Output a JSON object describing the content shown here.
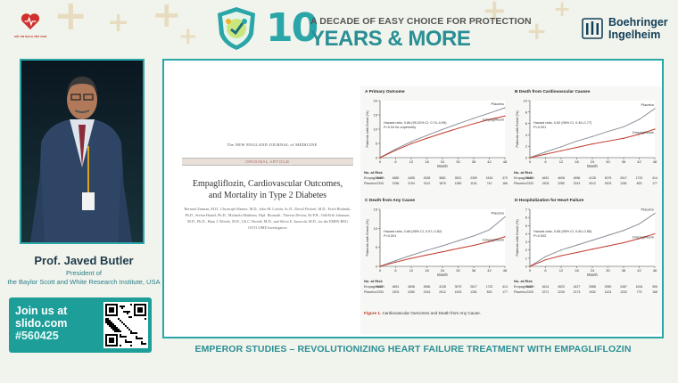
{
  "header": {
    "left_logo_text": "HỘI TIM MẠCH VIỆT NAM",
    "tagline": "A DECADE OF EASY CHOICE FOR PROTECTION",
    "big_number": "10",
    "years_text": "YEARS & MORE",
    "sponsor_line1": "Boehringer",
    "sponsor_line2": "Ingelheim",
    "accent_color": "#2aa5a8"
  },
  "speaker": {
    "name": "Prof. Javed Butler",
    "role_line1": "President of",
    "role_line2": "the Baylor Scott and White Research Institute, USA"
  },
  "slido": {
    "line1": "Join us at",
    "line2": "slido.com",
    "code": "#560425"
  },
  "paper": {
    "journal": "The NEW ENGLAND JOURNAL of MEDICINE",
    "section": "ORIGINAL ARTICLE",
    "title_line1": "Empagliflozin, Cardiovascular Outcomes,",
    "title_line2": "and Mortality in Type 2 Diabetes",
    "authors": "Bernard Zinman, M.D., Christoph Wanner, M.D., John M. Lachin, Sc.D., David Fitchett, M.D., Erich Bluhmki, Ph.D., Stefan Hantel, Ph.D., Michaela Mattheus, Dipl. Biomath., Theresa Devins, Dr.P.H., Odd Erik Johansen, M.D., Ph.D., Hans J. Woerle, M.D., Uli C. Broedl, M.D., and Silvio E. Inzucchi, M.D., for the EMPA-REG OUTCOME Investigators"
  },
  "figure_caption": {
    "label": "Figure 1.",
    "text": "Cardiovascular Outcomes and Death from Any Cause."
  },
  "chart_data": [
    {
      "type": "line",
      "title": "A  Primary Outcome",
      "xlabel": "Month",
      "ylabel": "Patients with Event (%)",
      "xlim": [
        0,
        48
      ],
      "ylim": [
        0,
        20
      ],
      "x_ticks": [
        0,
        6,
        12,
        18,
        24,
        30,
        36,
        42,
        48
      ],
      "y_ticks": [
        0,
        5,
        10,
        15,
        20
      ],
      "hazard_text": "Hazard ratio, 0.86 (95.02% CI, 0.74–0.99)",
      "p_text": "P=0.04 for superiority",
      "risk_label": "No. at Risk",
      "series": [
        {
          "name": "Placebo",
          "color": "#8a8f9a",
          "x": [
            0,
            6,
            12,
            18,
            24,
            30,
            36,
            42,
            48
          ],
          "values": [
            0,
            3.0,
            5.6,
            7.8,
            9.9,
            11.9,
            13.8,
            15.6,
            17.5
          ]
        },
        {
          "name": "Empagliflozin",
          "color": "#c0392b",
          "x": [
            0,
            6,
            12,
            18,
            24,
            30,
            36,
            42,
            48
          ],
          "values": [
            0,
            2.6,
            4.9,
            6.8,
            8.6,
            10.3,
            11.9,
            13.4,
            14.6
          ]
        }
      ],
      "risk_rows": [
        {
          "name": "Empagliflozin",
          "values": [
            "4687",
            "4580",
            "4455",
            "4328",
            "3851",
            "2821",
            "2359",
            "1534",
            "370"
          ]
        },
        {
          "name": "Placebo",
          "values": [
            "2333",
            "2256",
            "2194",
            "2112",
            "1875",
            "1380",
            "1161",
            "741",
            "166"
          ]
        }
      ]
    },
    {
      "type": "line",
      "title": "B  Death from Cardiovascular Causes",
      "xlabel": "Month",
      "ylabel": "Patients with Event (%)",
      "xlim": [
        0,
        48
      ],
      "ylim": [
        0,
        10
      ],
      "x_ticks": [
        0,
        6,
        12,
        18,
        24,
        30,
        36,
        42,
        48
      ],
      "y_ticks": [
        0,
        2,
        4,
        6,
        8,
        10
      ],
      "hazard_text": "Hazard ratio, 0.62 (95% CI, 0.49–0.77)",
      "p_text": "P<0.001",
      "risk_label": "No. at Risk",
      "series": [
        {
          "name": "Placebo",
          "color": "#8a8f9a",
          "x": [
            0,
            6,
            12,
            18,
            24,
            30,
            36,
            42,
            48
          ],
          "values": [
            0,
            1.0,
            1.9,
            2.9,
            3.7,
            4.6,
            5.4,
            6.7,
            8.6
          ]
        },
        {
          "name": "Empagliflozin",
          "color": "#c0392b",
          "x": [
            0,
            6,
            12,
            18,
            24,
            30,
            36,
            42,
            48
          ],
          "values": [
            0,
            0.6,
            1.2,
            1.8,
            2.4,
            2.9,
            3.4,
            4.1,
            5.0
          ]
        }
      ],
      "risk_rows": [
        {
          "name": "Empagliflozin",
          "values": [
            "4687",
            "4651",
            "4608",
            "4556",
            "4128",
            "3079",
            "2617",
            "1722",
            "414"
          ]
        },
        {
          "name": "Placebo",
          "values": [
            "2333",
            "2303",
            "2280",
            "2243",
            "2012",
            "1503",
            "1281",
            "825",
            "177"
          ]
        }
      ]
    },
    {
      "type": "line",
      "title": "C  Death from Any Cause",
      "xlabel": "Month",
      "ylabel": "Patients with Event (%)",
      "xlim": [
        0,
        48
      ],
      "ylim": [
        0,
        15
      ],
      "x_ticks": [
        0,
        6,
        12,
        18,
        24,
        30,
        36,
        42,
        48
      ],
      "y_ticks": [
        0,
        5,
        10,
        15
      ],
      "hazard_text": "Hazard ratio, 0.68 (95% CI, 0.57–0.82)",
      "p_text": "P<0.001",
      "risk_label": "No. at Risk",
      "series": [
        {
          "name": "Placebo",
          "color": "#8a8f9a",
          "x": [
            0,
            6,
            12,
            18,
            24,
            30,
            36,
            42,
            48
          ],
          "values": [
            0,
            1.5,
            2.9,
            4.2,
            5.4,
            6.7,
            8.0,
            9.6,
            13.0
          ]
        },
        {
          "name": "Empagliflozin",
          "color": "#c0392b",
          "x": [
            0,
            6,
            12,
            18,
            24,
            30,
            36,
            42,
            48
          ],
          "values": [
            0,
            1.1,
            2.1,
            3.0,
            3.8,
            4.7,
            5.5,
            6.5,
            7.8
          ]
        }
      ],
      "risk_rows": [
        {
          "name": "Empagliflozin",
          "values": [
            "4687",
            "4651",
            "4608",
            "4556",
            "4128",
            "3079",
            "2617",
            "1722",
            "414"
          ]
        },
        {
          "name": "Placebo",
          "values": [
            "2333",
            "2303",
            "2280",
            "2243",
            "2012",
            "1503",
            "1281",
            "825",
            "177"
          ]
        }
      ]
    },
    {
      "type": "line",
      "title": "D  Hospitalization for Heart Failure",
      "xlabel": "Month",
      "ylabel": "Patients with Event (%)",
      "xlim": [
        0,
        48
      ],
      "ylim": [
        0,
        7
      ],
      "x_ticks": [
        0,
        6,
        12,
        18,
        24,
        30,
        36,
        42,
        48
      ],
      "y_ticks": [
        0,
        1,
        2,
        3,
        4,
        5,
        6,
        7
      ],
      "hazard_text": "Hazard ratio, 0.65 (95% CI, 0.50–0.85)",
      "p_text": "P=0.002",
      "risk_label": "No. at Risk",
      "series": [
        {
          "name": "Placebo",
          "color": "#8a8f9a",
          "x": [
            0,
            6,
            12,
            18,
            24,
            30,
            36,
            42,
            48
          ],
          "values": [
            0,
            1.2,
            2.0,
            2.6,
            3.2,
            3.8,
            4.4,
            5.2,
            6.5
          ]
        },
        {
          "name": "Empagliflozin",
          "color": "#c0392b",
          "x": [
            0,
            6,
            12,
            18,
            24,
            30,
            36,
            42,
            48
          ],
          "values": [
            0,
            0.8,
            1.3,
            1.7,
            2.1,
            2.5,
            2.9,
            3.4,
            4.0
          ]
        }
      ],
      "risk_rows": [
        {
          "name": "Empagliflozin",
          "values": [
            "4687",
            "4614",
            "4523",
            "4427",
            "3988",
            "2950",
            "2487",
            "1634",
            "395"
          ]
        },
        {
          "name": "Placebo",
          "values": [
            "2333",
            "2271",
            "2226",
            "2173",
            "1932",
            "1424",
            "1202",
            "775",
            "168"
          ]
        }
      ]
    }
  ],
  "bottom_title": "EMPEROR STUDIES – REVOLUTIONIZING HEART FAILURE TREATMENT WITH EMPAGLIFLOZIN"
}
